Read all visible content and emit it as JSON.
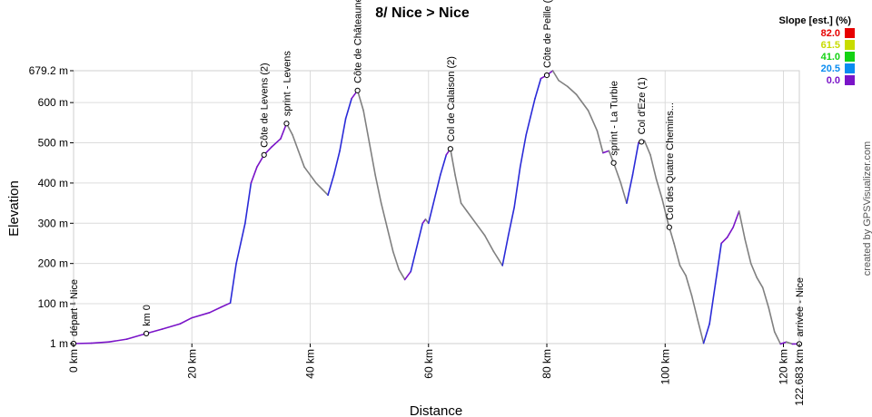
{
  "chart_data": {
    "type": "area",
    "title": "8/ Nice > Nice",
    "xlabel": "Distance",
    "ylabel": "Elevation",
    "xlim": [
      0,
      122.683
    ],
    "ylim": [
      1,
      679.2
    ],
    "x_ticks": [
      {
        "value": 0,
        "label": "0 km"
      },
      {
        "value": 20,
        "label": "20 km"
      },
      {
        "value": 40,
        "label": "40 km"
      },
      {
        "value": 60,
        "label": "60 km"
      },
      {
        "value": 80,
        "label": "80 km"
      },
      {
        "value": 100,
        "label": "100 km"
      },
      {
        "value": 120,
        "label": "120 km"
      },
      {
        "value": 122.683,
        "label": "122.683 km"
      }
    ],
    "y_ticks": [
      {
        "value": 1,
        "label": "1 m"
      },
      {
        "value": 100,
        "label": "100 m"
      },
      {
        "value": 200,
        "label": "200 m"
      },
      {
        "value": 300,
        "label": "300 m"
      },
      {
        "value": 400,
        "label": "400 m"
      },
      {
        "value": 500,
        "label": "500 m"
      },
      {
        "value": 600,
        "label": "600 m"
      },
      {
        "value": 679.2,
        "label": "679.2 m"
      }
    ],
    "grid": true,
    "profile": {
      "x": [
        0,
        3,
        6,
        9,
        12.3,
        15,
        18,
        20,
        23,
        25,
        26.5,
        27.5,
        29,
        30,
        31,
        32.2,
        33.5,
        35,
        36,
        37,
        38,
        39,
        40,
        41,
        42,
        43,
        44,
        45,
        46,
        47,
        48,
        49,
        50,
        51,
        52,
        53,
        54,
        55,
        56,
        57,
        58,
        59,
        59.5,
        60,
        61,
        62,
        63,
        63.7,
        64.5,
        65.5,
        66.5,
        68,
        69.5,
        71,
        72.5,
        73.5,
        74.5,
        75.5,
        76.5,
        78,
        79,
        80,
        81,
        82,
        83.5,
        85,
        87,
        88.5,
        89.5,
        90.5,
        91.3,
        92.5,
        93.5,
        94.5,
        95.5,
        96.5,
        97.5,
        98.5,
        99.5,
        100.5,
        101.5,
        102.5,
        103.5,
        104.5,
        105.5,
        106.5,
        107.5,
        108.5,
        109.5,
        110.5,
        111.5,
        112.5,
        113.5,
        114.5,
        115.5,
        116.5,
        117.5,
        118.5,
        119.5,
        120.5,
        121.5,
        122.683
      ],
      "y": [
        1,
        2,
        5,
        12,
        26,
        37,
        50,
        65,
        78,
        92,
        102,
        200,
        300,
        400,
        440,
        470,
        490,
        510,
        548,
        520,
        480,
        440,
        420,
        400,
        385,
        370,
        420,
        480,
        560,
        610,
        630,
        580,
        500,
        420,
        350,
        290,
        230,
        185,
        160,
        180,
        240,
        300,
        310,
        300,
        360,
        420,
        470,
        485,
        420,
        350,
        330,
        300,
        270,
        230,
        195,
        270,
        340,
        440,
        520,
        610,
        660,
        668,
        679.2,
        655,
        640,
        620,
        580,
        530,
        475,
        480,
        450,
        400,
        350,
        420,
        500,
        505,
        470,
        410,
        360,
        300,
        250,
        195,
        170,
        120,
        60,
        2,
        50,
        150,
        250,
        265,
        290,
        330,
        260,
        200,
        165,
        140,
        90,
        30,
        0,
        5,
        0,
        0
      ]
    },
    "waypoints": [
      {
        "km": 0,
        "label": "départ - Nice"
      },
      {
        "km": 12.3,
        "label": "km 0"
      },
      {
        "km": 32.2,
        "label": "Côte de Levens (2)"
      },
      {
        "km": 36,
        "label": "sprint - Levens"
      },
      {
        "km": 48,
        "label": "Côte de Châteauneuf"
      },
      {
        "km": 63.7,
        "label": "Col de Calaison (2)"
      },
      {
        "km": 80,
        "label": "Côte de Peille (1)"
      },
      {
        "km": 91.3,
        "label": "sprint - La Turbie"
      },
      {
        "km": 96,
        "label": "Col d'Eze (1)"
      },
      {
        "km": 100.7,
        "label": "Col des Quatre Chemins..."
      },
      {
        "km": 122.683,
        "label": "arrivée - Nice"
      }
    ],
    "slope_legend": {
      "title": "Slope [est.] (%)",
      "items": [
        {
          "label": "82.0",
          "color": "#e60000"
        },
        {
          "label": "61.5",
          "color": "#c8dc00"
        },
        {
          "label": "41.0",
          "color": "#14d214"
        },
        {
          "label": "20.5",
          "color": "#0a8cf0"
        },
        {
          "label": "0.0",
          "color": "#7a14c8"
        }
      ]
    },
    "colors": {
      "line_climb": "#2a2ad8",
      "line_flat": "#7a14c8",
      "line_descent": "#808080",
      "grid": "#dcdcdc"
    }
  },
  "credit": "created by GPSVisualizer.com"
}
